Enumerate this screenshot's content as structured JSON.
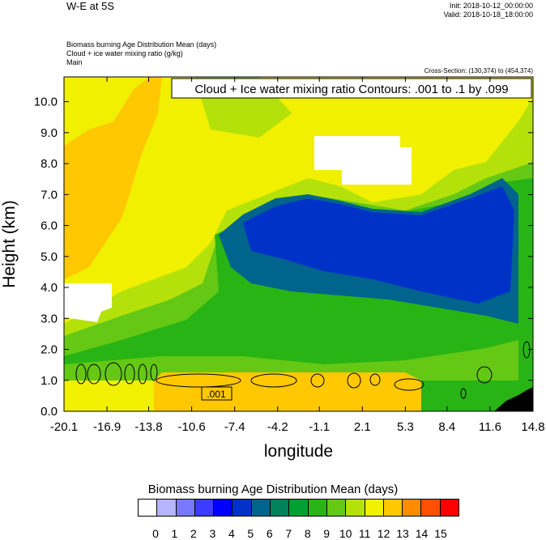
{
  "header": {
    "title": "W-E at 5S",
    "init": "Init: 2018-10-12_00:00:00",
    "valid": "Valid: 2018-10-18_18:00:00",
    "desc1": "Biomass burning Age Distribution Mean   (days)",
    "desc2": "Cloud + ice water mixing ratio   (g/kg)",
    "desc3": "Main",
    "cross_section": "Cross-Section: (130,374) to (454,374)"
  },
  "chart_data": {
    "type": "heatmap",
    "title": "Biomass burning Age Distribution Mean (days)",
    "xlabel": "longitude",
    "ylabel": "Height (km)",
    "x_ticks": [
      "-20.1",
      "-16.9",
      "-13.8",
      "-10.6",
      "-7.4",
      "-4.2",
      "-1.1",
      "2.1",
      "5.3",
      "8.4",
      "11.6",
      "14.8"
    ],
    "y_ticks": [
      "0.0",
      "1.0",
      "2.0",
      "3.0",
      "4.0",
      "5.0",
      "6.0",
      "7.0",
      "8.0",
      "9.0",
      "10.0"
    ],
    "xlim": [
      -20.1,
      14.8
    ],
    "ylim": [
      0.0,
      10.8
    ],
    "contour_label": "Cloud + Ice water mixing ratio Contours: .001 to .1 by .099",
    "contour_annotation": ".001",
    "colorbar": {
      "label": "Biomass burning Age Distribution Mean  (days)",
      "labels": [
        "0",
        "1",
        "2",
        "3",
        "4",
        "5",
        "6",
        "7",
        "8",
        "9",
        "10",
        "11",
        "12",
        "13",
        "14",
        "15"
      ],
      "colors": [
        "#ffffff",
        "#b4b4ff",
        "#7878ff",
        "#3c3cff",
        "#0000ff",
        "#0032c8",
        "#00648c",
        "#00825a",
        "#00a032",
        "#28b414",
        "#64c814",
        "#b4e10a",
        "#f0f000",
        "#ffc800",
        "#ff8c00",
        "#ff5000",
        "#ff0000"
      ]
    },
    "bands": [
      {
        "name": "band-age-11-12",
        "color": "#f0f000"
      },
      {
        "name": "band-age-13",
        "color": "#ffc800"
      },
      {
        "name": "band-age-10-11",
        "color": "#b4e10a"
      },
      {
        "name": "band-age-9-10",
        "color": "#64c814"
      },
      {
        "name": "band-age-8",
        "color": "#28b414"
      },
      {
        "name": "band-age-6-7",
        "color": "#00648c"
      },
      {
        "name": "band-age-4-5",
        "color": "#0032c8"
      }
    ]
  }
}
